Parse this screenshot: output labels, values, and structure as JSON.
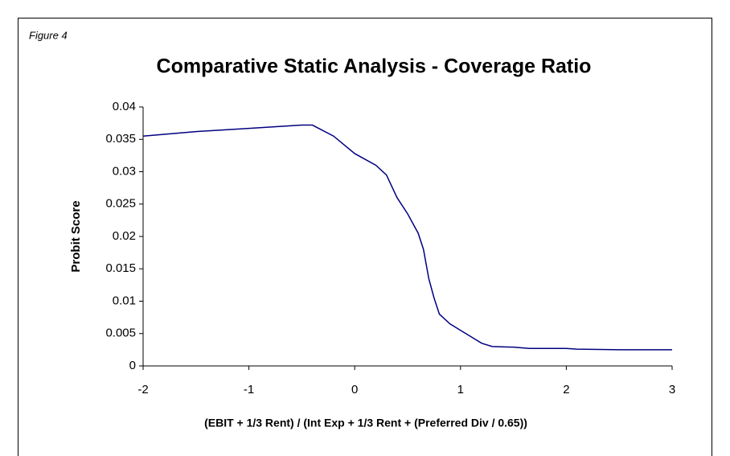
{
  "figure_label": "Figure 4",
  "chart_data": {
    "type": "line",
    "title": "Comparative Static Analysis - Coverage Ratio",
    "x_label": "(EBIT + 1/3 Rent) / (Int Exp + 1/3 Rent + (Preferred Div / 0.65))",
    "y_label": "Probit Score",
    "x": [
      -2,
      -1.5,
      -1,
      -0.5,
      -0.4,
      -0.2,
      0,
      0.2,
      0.3,
      0.4,
      0.5,
      0.6,
      0.65,
      0.7,
      0.75,
      0.8,
      0.9,
      1.0,
      1.1,
      1.2,
      1.3,
      1.5,
      1.65,
      2,
      2.1,
      2.5,
      3
    ],
    "series": [
      {
        "name": "Probit Score",
        "color": "#000080",
        "values": [
          0.0355,
          0.0362,
          0.0367,
          0.0372,
          0.0372,
          0.0355,
          0.0328,
          0.031,
          0.0295,
          0.026,
          0.0235,
          0.0205,
          0.018,
          0.0135,
          0.0105,
          0.008,
          0.0065,
          0.0055,
          0.0045,
          0.0035,
          0.003,
          0.0029,
          0.0027,
          0.0027,
          0.0026,
          0.0025,
          0.0025
        ]
      }
    ],
    "xlim": [
      -2,
      3
    ],
    "xticks": [
      -2,
      -1,
      0,
      1,
      2,
      3
    ],
    "ylim": [
      0,
      0.04
    ],
    "yticks": [
      0,
      0.005,
      0.01,
      0.015,
      0.02,
      0.025,
      0.03,
      0.035,
      0.04
    ],
    "grid": false
  }
}
